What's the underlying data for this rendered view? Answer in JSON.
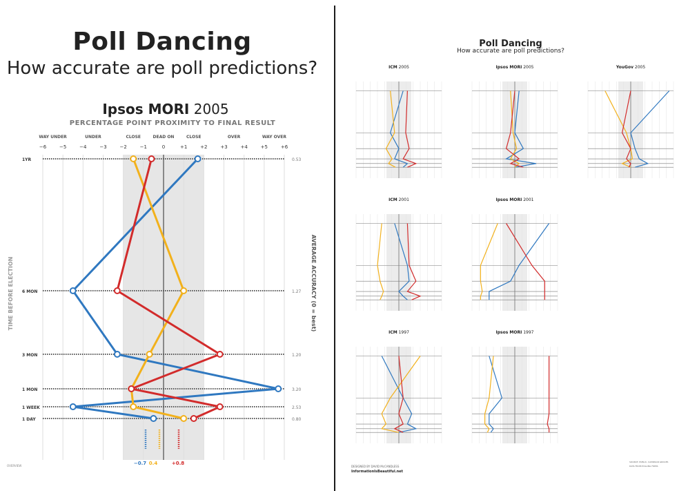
{
  "page": {
    "title": "Poll Dancing",
    "subtitle": "How accurate are poll predictions?",
    "credit_line1": "DESIGNED BY DAVID McCANDLESS",
    "credit_line2": "InformationIsBeautiful.net",
    "source_line1": "SOURCE: PUBLIC, CAMPAIGN GROUPS",
    "source_line2": "DATA FROM POLLING FIRMS",
    "copyright": "OVERVIEW"
  },
  "chart_data": [
    {
      "type": "line",
      "pollster": "Ipsos MORI",
      "year": "2005",
      "subtitle": "PERCENTAGE POINT PROXIMITY TO FINAL RESULT",
      "ylabel": "TIME BEFORE ELECTION",
      "y2label": "AVERAGE ACCURACY (0 = best)",
      "zones": [
        "WAY UNDER",
        "UNDER",
        "CLOSE",
        "DEAD ON",
        "CLOSE",
        "OVER",
        "WAY OVER"
      ],
      "xticks": [
        "−6",
        "−5",
        "−4",
        "−3",
        "−2",
        "−1",
        "0",
        "+1",
        "+2",
        "+3",
        "+4",
        "+5",
        "+6"
      ],
      "xlim": [
        -6,
        6
      ],
      "times": [
        "1YR",
        "6 MON",
        "3 MON",
        "1 MON",
        "1 WEEK",
        "1 DAY"
      ],
      "accuracy": [
        "0.53",
        "1.27",
        "1.20",
        "3.20",
        "2.53",
        "0.80"
      ],
      "series": [
        {
          "color": "#2f78c0",
          "values": [
            1.7,
            -4.5,
            -2.3,
            5.7,
            -4.5,
            -0.5
          ]
        },
        {
          "color": "#f2b11c",
          "values": [
            -1.5,
            1.0,
            -0.7,
            -1.6,
            -1.5,
            1.0
          ]
        },
        {
          "color": "#d22b2b",
          "values": [
            -0.6,
            -2.3,
            2.8,
            -1.6,
            2.8,
            1.5
          ]
        }
      ],
      "bottom_values": [
        "−0.7",
        "0.4",
        "+0.8"
      ]
    }
  ],
  "mini_charts": [
    {
      "pollster": "ICM",
      "year": "2005"
    },
    {
      "pollster": "Ipsos MORI",
      "year": "2005"
    },
    {
      "pollster": "YouGov",
      "year": "2005"
    },
    {
      "pollster": "ICM",
      "year": "2001"
    },
    {
      "pollster": "Ipsos MORI",
      "year": "2001"
    },
    {
      "pollster": "ICM",
      "year": "1997"
    },
    {
      "pollster": "Ipsos MORI",
      "year": "1997"
    }
  ],
  "colors": {
    "blue": "#2f78c0",
    "yellow": "#f2b11c",
    "red": "#d22b2b",
    "grid": "#bbbbbb",
    "band": "#e6e6e6"
  }
}
